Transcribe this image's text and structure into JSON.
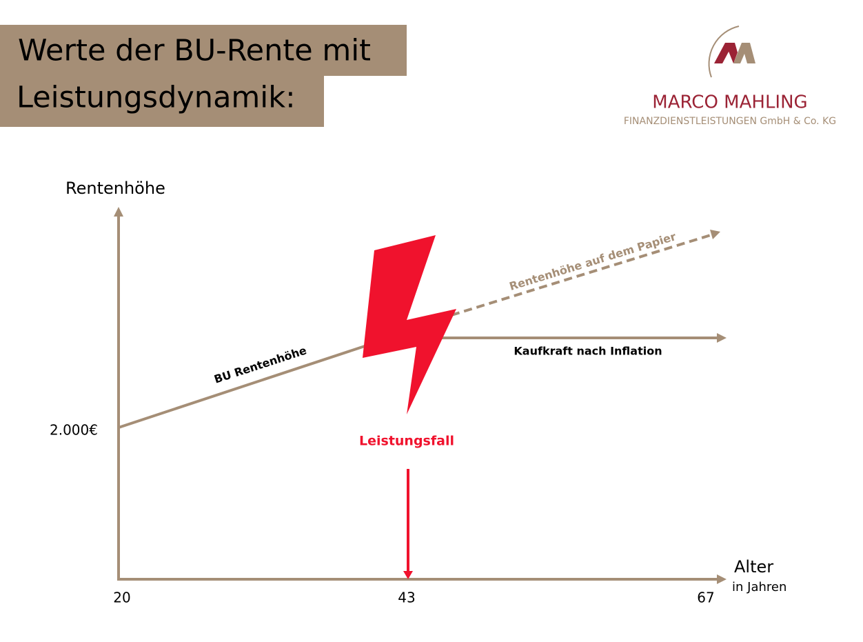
{
  "header": {
    "title_lines": [
      "Werte der BU-Rente mit",
      "Leistungsdynamik:"
    ]
  },
  "logo": {
    "name": "MARCO MAHLING",
    "subtitle": "FINANZDIENSTLEISTUNGEN GmbH & Co. KG"
  },
  "diagram": {
    "y_axis_label": "Rentenhöhe",
    "y_value_label": "2.000€",
    "x_axis_label": "Alter",
    "x_axis_unit": "in Jahren",
    "x_labels": [
      "20",
      "43",
      "67"
    ],
    "line_labels": {
      "bu": "BU Rentenhöhe",
      "paper": "Rentenhöhe auf dem Papier",
      "inflation": "Kaufkraft nach Inflation"
    },
    "event": "Leistungsfall"
  }
}
